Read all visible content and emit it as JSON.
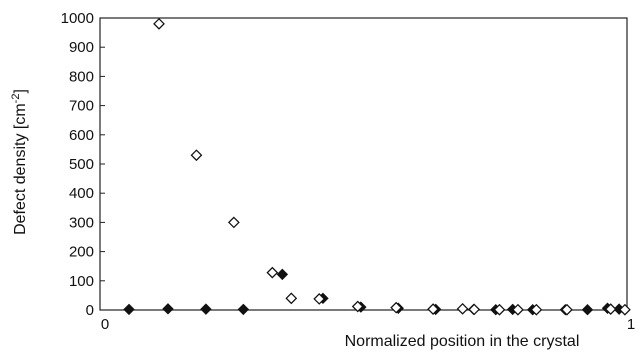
{
  "chart_data": {
    "type": "scatter",
    "title": "",
    "xlabel": "Normalized  position in the crystal",
    "ylabel_main": "Defect density [cm",
    "ylabel_sup": "-2",
    "ylabel_tail": "]",
    "xlim": [
      0,
      1
    ],
    "ylim": [
      0,
      1000
    ],
    "x_ticks": [
      0,
      1
    ],
    "y_ticks": [
      0,
      100,
      200,
      300,
      400,
      500,
      600,
      700,
      800,
      900,
      1000
    ],
    "grid": false,
    "series": [
      {
        "marker": "diamond-filled",
        "color": "#111111",
        "points": [
          {
            "x": 0.055,
            "y": 2
          },
          {
            "x": 0.129,
            "y": 4
          },
          {
            "x": 0.201,
            "y": 3
          },
          {
            "x": 0.272,
            "y": 2
          },
          {
            "x": 0.346,
            "y": 122
          },
          {
            "x": 0.423,
            "y": 40
          },
          {
            "x": 0.495,
            "y": 10
          },
          {
            "x": 0.566,
            "y": 6
          },
          {
            "x": 0.637,
            "y": 2
          },
          {
            "x": 0.709,
            "y": 2
          },
          {
            "x": 0.751,
            "y": 1
          },
          {
            "x": 0.783,
            "y": 2
          },
          {
            "x": 0.821,
            "y": 1
          },
          {
            "x": 0.883,
            "y": 1
          },
          {
            "x": 0.925,
            "y": 1
          },
          {
            "x": 0.963,
            "y": 6
          },
          {
            "x": 0.985,
            "y": 3
          }
        ]
      },
      {
        "marker": "diamond-open",
        "color": "#111111",
        "points": [
          {
            "x": 0.112,
            "y": 980
          },
          {
            "x": 0.183,
            "y": 530
          },
          {
            "x": 0.254,
            "y": 300
          },
          {
            "x": 0.327,
            "y": 128
          },
          {
            "x": 0.363,
            "y": 40
          },
          {
            "x": 0.416,
            "y": 38
          },
          {
            "x": 0.489,
            "y": 12
          },
          {
            "x": 0.562,
            "y": 8
          },
          {
            "x": 0.632,
            "y": 3
          },
          {
            "x": 0.688,
            "y": 4
          },
          {
            "x": 0.71,
            "y": 2
          },
          {
            "x": 0.758,
            "y": 1
          },
          {
            "x": 0.793,
            "y": 1
          },
          {
            "x": 0.828,
            "y": 1
          },
          {
            "x": 0.886,
            "y": 1
          },
          {
            "x": 0.969,
            "y": 3
          },
          {
            "x": 0.996,
            "y": 1
          }
        ]
      }
    ]
  }
}
